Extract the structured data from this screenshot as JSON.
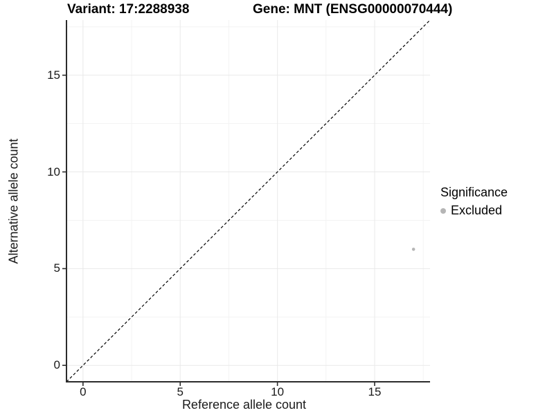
{
  "chart_data": {
    "type": "scatter",
    "title_left": "Variant: 17:2288938",
    "title_right": "Gene: MNT (ENSG00000070444)",
    "xlabel": "Reference allele count",
    "ylabel": "Alternative allele count",
    "x_ticks": [
      0,
      5,
      10,
      15
    ],
    "y_ticks": [
      0,
      5,
      10,
      15
    ],
    "xlim": [
      -0.85,
      17.85
    ],
    "ylim": [
      -0.85,
      17.85
    ],
    "grid": {
      "major": true,
      "minor": true
    },
    "reference_line": {
      "type": "identity y=x",
      "style": "dashed",
      "color": "#000000"
    },
    "series": [
      {
        "name": "Excluded",
        "color": "#b5b5b5",
        "point_radius": 2.3,
        "points": [
          [
            17,
            6
          ]
        ]
      }
    ],
    "legend": {
      "position": "right",
      "title": "Significance",
      "items": [
        {
          "label": "Excluded",
          "color": "#b5b5b5"
        }
      ]
    },
    "colors": {
      "background": "#ffffff",
      "grid_major": "#e9e9e9",
      "grid_minor": "#f3f3f3",
      "axis_line": "#2b2b2b",
      "tick_mark": "#2b2b2b",
      "tick_text": "#1a1a1a",
      "title_text": "#000000"
    }
  }
}
